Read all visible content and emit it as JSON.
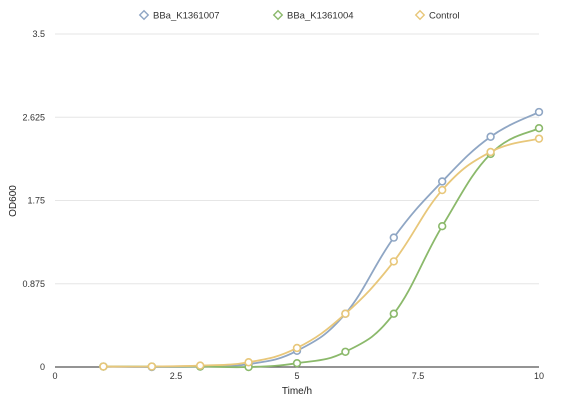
{
  "chart_data": {
    "type": "line",
    "title": "",
    "xlabel": "Time/h",
    "ylabel": "OD600",
    "xlim": [
      0,
      10
    ],
    "ylim": [
      0,
      3.5
    ],
    "x_ticks": [
      "0",
      "2.5",
      "5",
      "7.5",
      "10"
    ],
    "y_ticks": [
      "0",
      "0.875",
      "1.75",
      "2.625",
      "3.5"
    ],
    "grid": "horizontal",
    "legend_position": "top",
    "series": [
      {
        "name": "BBa_K1361007",
        "color": "#8fa6c4",
        "x": [
          1,
          2,
          3,
          4,
          5,
          6,
          7,
          8,
          9,
          10
        ],
        "y": [
          0.005,
          0.0,
          0.005,
          0.03,
          0.17,
          0.56,
          1.36,
          1.95,
          2.42,
          2.68
        ]
      },
      {
        "name": "BBa_K1361004",
        "color": "#8bb96b",
        "x": [
          1,
          2,
          3,
          4,
          5,
          6,
          7,
          8,
          9,
          10
        ],
        "y": [
          0.005,
          0.005,
          0.005,
          0.0,
          0.04,
          0.16,
          0.56,
          1.48,
          2.24,
          2.51
        ]
      },
      {
        "name": "Control",
        "color": "#e8c77a",
        "x": [
          1,
          2,
          3,
          4,
          5,
          6,
          7,
          8,
          9,
          10
        ],
        "y": [
          0.005,
          0.005,
          0.015,
          0.05,
          0.2,
          0.56,
          1.11,
          1.86,
          2.26,
          2.4
        ]
      }
    ]
  }
}
